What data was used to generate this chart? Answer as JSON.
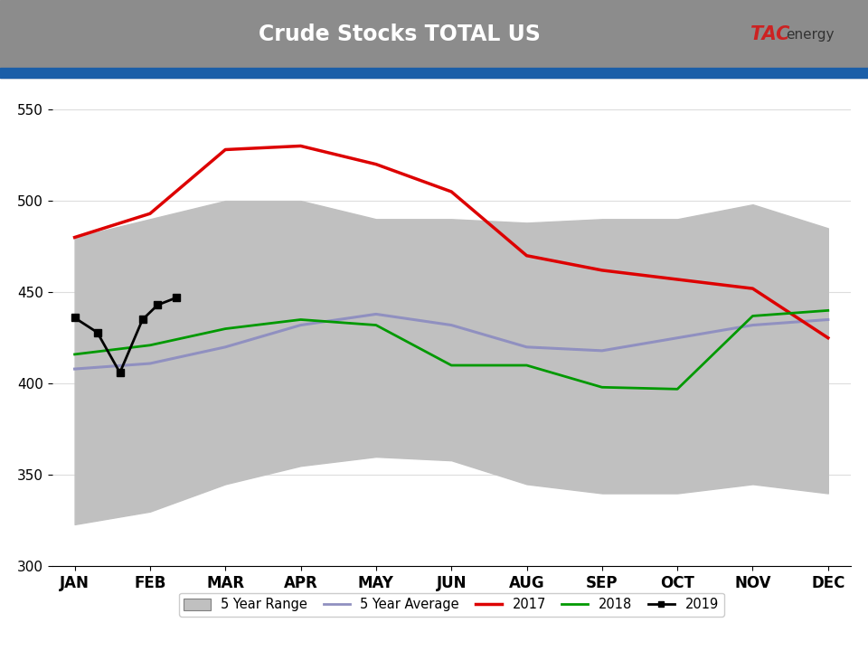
{
  "title": "Crude Stocks TOTAL US",
  "title_bg_color": "#8c8c8c",
  "title_stripe_color": "#1a5ea8",
  "title_text_color": "#ffffff",
  "ylabel_values": [
    300,
    350,
    400,
    450,
    500,
    550
  ],
  "xlabels": [
    "JAN",
    "FEB",
    "MAR",
    "APR",
    "MAY",
    "JUN",
    "AUG",
    "SEP",
    "OCT",
    "NOV",
    "DEC"
  ],
  "x_positions": [
    0,
    1,
    2,
    3,
    4,
    5,
    6,
    7,
    8,
    9,
    10
  ],
  "five_year_range_upper": [
    480,
    490,
    500,
    500,
    490,
    490,
    488,
    490,
    490,
    498,
    485
  ],
  "five_year_range_lower": [
    323,
    330,
    345,
    355,
    360,
    358,
    345,
    340,
    340,
    345,
    340
  ],
  "five_year_avg": [
    408,
    411,
    420,
    432,
    438,
    432,
    420,
    418,
    425,
    432,
    435
  ],
  "series_2017": [
    480,
    493,
    528,
    530,
    520,
    505,
    470,
    462,
    457,
    452,
    425
  ],
  "series_2018": [
    416,
    421,
    430,
    435,
    432,
    410,
    410,
    398,
    397,
    437,
    440
  ],
  "series_2019_x": [
    0,
    0.3,
    0.6,
    0.9,
    1.1,
    1.35
  ],
  "series_2019_y": [
    436,
    428,
    406,
    435,
    443,
    447
  ],
  "range_color": "#c0c0c0",
  "avg_color": "#9090c0",
  "color_2017": "#dd0000",
  "color_2018": "#009900",
  "color_2019": "#000000",
  "background_color": "#ffffff",
  "plot_bg_color": "#ffffff",
  "ylim": [
    300,
    560
  ],
  "xlim": [
    -0.3,
    10.3
  ]
}
